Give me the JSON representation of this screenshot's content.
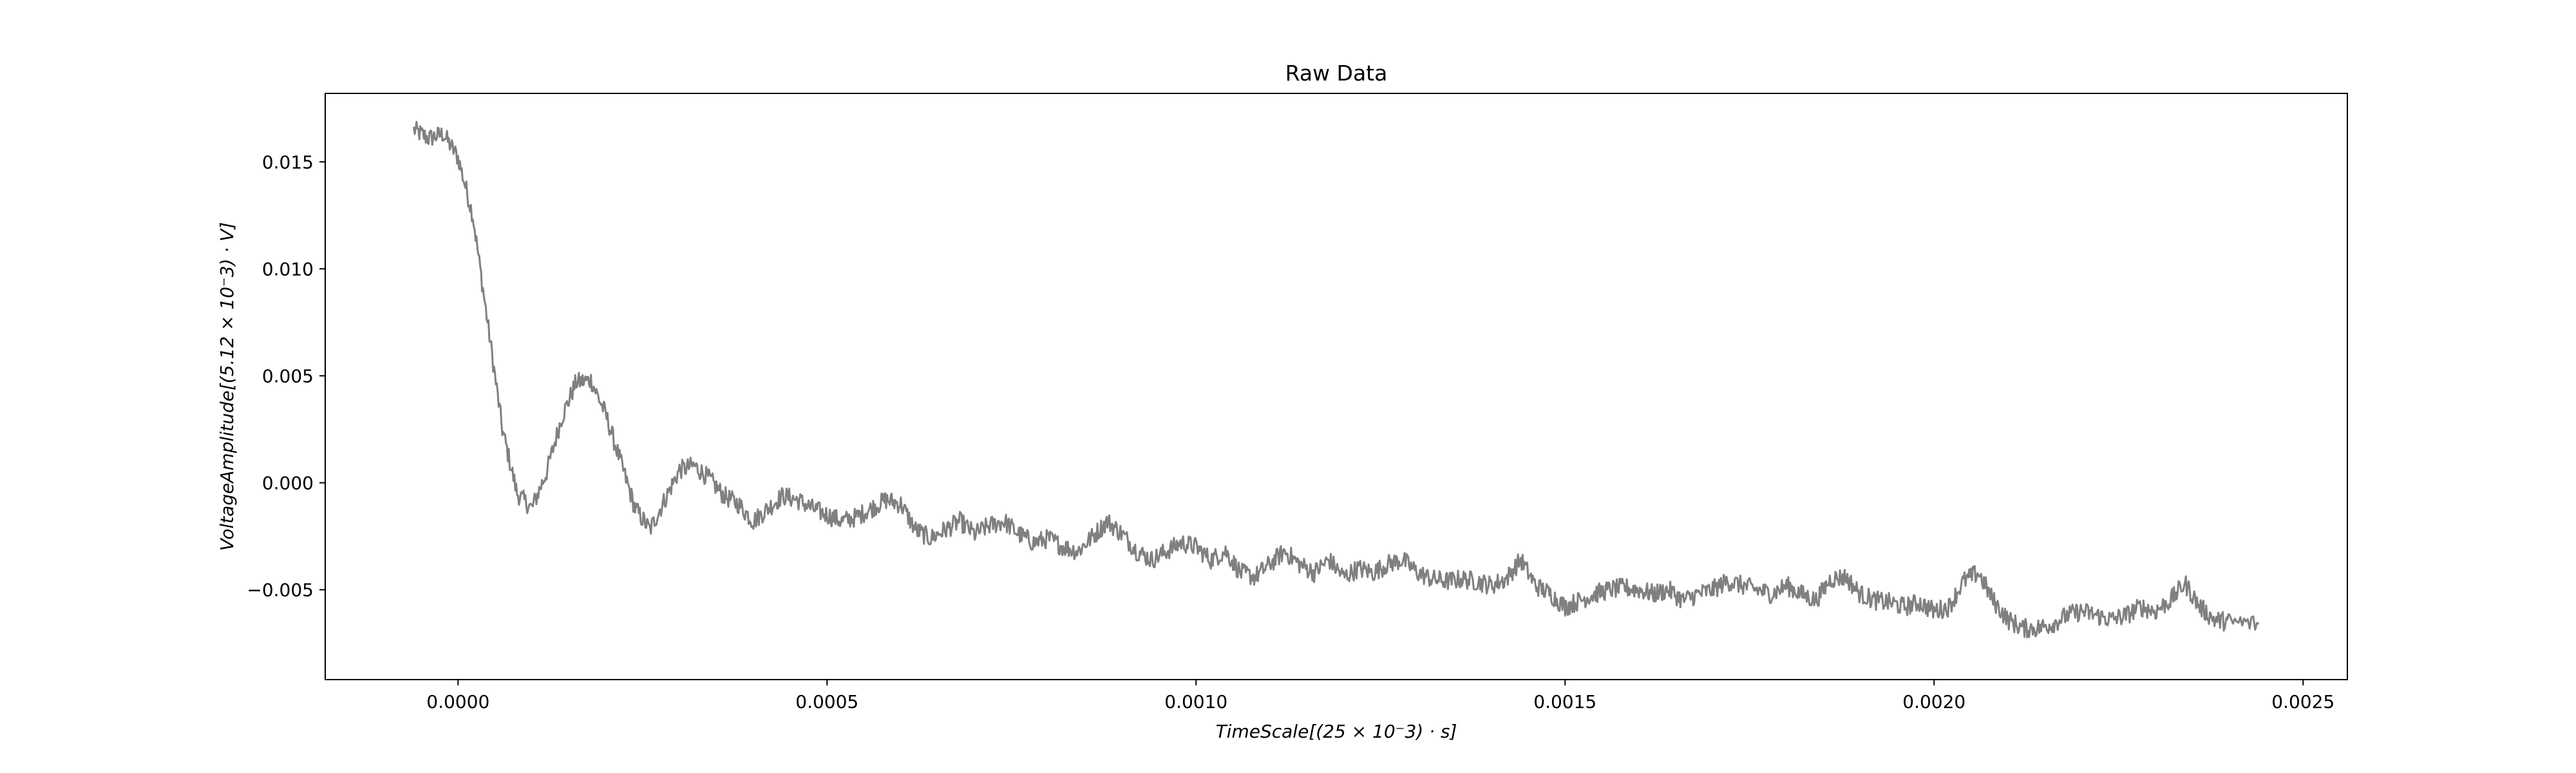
{
  "chart_data": {
    "type": "line",
    "title": "Raw Data",
    "xlabel": "TimeScale[(25 × 10⁻3) · s]",
    "ylabel": "VoltageAmplitude[(5.12 × 10⁻3) · V]",
    "xlim": [
      -0.00018,
      0.00256
    ],
    "ylim": [
      -0.0092,
      0.0182
    ],
    "x_ticks": [
      {
        "value": 0.0,
        "label": "0.0000"
      },
      {
        "value": 0.0005,
        "label": "0.0005"
      },
      {
        "value": 0.001,
        "label": "0.0010"
      },
      {
        "value": 0.0015,
        "label": "0.0015"
      },
      {
        "value": 0.002,
        "label": "0.0020"
      },
      {
        "value": 0.0025,
        "label": "0.0025"
      }
    ],
    "y_ticks": [
      {
        "value": -0.005,
        "label": "−0.005"
      },
      {
        "value": 0.0,
        "label": "0.000"
      },
      {
        "value": 0.005,
        "label": "0.005"
      },
      {
        "value": 0.01,
        "label": "0.010"
      },
      {
        "value": 0.015,
        "label": "0.015"
      }
    ],
    "grid": false,
    "series": [
      {
        "color": "#808080",
        "x": [
          -6e-05,
          -4e-05,
          -2e-05,
          0.0,
          2e-05,
          4e-05,
          6e-05,
          8e-05,
          0.0001,
          0.00012,
          0.00014,
          0.00016,
          0.00018,
          0.0002,
          0.00022,
          0.00024,
          0.00026,
          0.00028,
          0.0003,
          0.00032,
          0.00034,
          0.00036,
          0.00038,
          0.0004,
          0.00042,
          0.00044,
          0.00046,
          0.00048,
          0.0005,
          0.00052,
          0.00054,
          0.00056,
          0.00058,
          0.0006,
          0.00062,
          0.00064,
          0.00066,
          0.00068,
          0.0007,
          0.00072,
          0.00074,
          0.00076,
          0.00078,
          0.0008,
          0.00082,
          0.00084,
          0.00086,
          0.00088,
          0.0009,
          0.00092,
          0.00094,
          0.00096,
          0.00098,
          0.001,
          0.00102,
          0.00104,
          0.00106,
          0.00108,
          0.0011,
          0.00112,
          0.00114,
          0.00116,
          0.00118,
          0.0012,
          0.00122,
          0.00124,
          0.00126,
          0.00128,
          0.0013,
          0.00132,
          0.00134,
          0.00136,
          0.00138,
          0.0014,
          0.00142,
          0.00144,
          0.00146,
          0.00148,
          0.0015,
          0.00152,
          0.00154,
          0.00156,
          0.00158,
          0.0016,
          0.00162,
          0.00164,
          0.00166,
          0.00168,
          0.0017,
          0.00172,
          0.00174,
          0.00176,
          0.00178,
          0.0018,
          0.00182,
          0.00184,
          0.00186,
          0.00188,
          0.0019,
          0.00192,
          0.00194,
          0.00196,
          0.00198,
          0.002,
          0.00202,
          0.00204,
          0.00206,
          0.00208,
          0.0021,
          0.00212,
          0.00214,
          0.00216,
          0.00218,
          0.0022,
          0.00222,
          0.00224,
          0.00226,
          0.00228,
          0.0023,
          0.00232,
          0.00234,
          0.00236,
          0.00238,
          0.0024,
          0.00244
        ],
        "y": [
          0.0165,
          0.0161,
          0.0163,
          0.0152,
          0.0125,
          0.0075,
          0.0025,
          -0.0005,
          -0.0012,
          0.0005,
          0.003,
          0.0047,
          0.0048,
          0.0032,
          0.001,
          -0.0012,
          -0.0022,
          -0.0008,
          0.0006,
          0.0008,
          0.0002,
          -0.0006,
          -0.001,
          -0.0018,
          -0.0012,
          -0.0006,
          -0.0008,
          -0.0012,
          -0.0015,
          -0.0018,
          -0.0016,
          -0.0012,
          -0.0008,
          -0.001,
          -0.0022,
          -0.0026,
          -0.0022,
          -0.0018,
          -0.0024,
          -0.002,
          -0.0018,
          -0.0024,
          -0.0028,
          -0.0026,
          -0.003,
          -0.0032,
          -0.0025,
          -0.0018,
          -0.0024,
          -0.0032,
          -0.0036,
          -0.0032,
          -0.0028,
          -0.003,
          -0.0036,
          -0.0032,
          -0.0042,
          -0.0044,
          -0.0038,
          -0.0032,
          -0.0038,
          -0.0042,
          -0.0036,
          -0.0044,
          -0.004,
          -0.0042,
          -0.0038,
          -0.0036,
          -0.0042,
          -0.0045,
          -0.0046,
          -0.0045,
          -0.0046,
          -0.0048,
          -0.0045,
          -0.0036,
          -0.0048,
          -0.0052,
          -0.0058,
          -0.0055,
          -0.0052,
          -0.005,
          -0.0049,
          -0.005,
          -0.0052,
          -0.005,
          -0.0055,
          -0.0052,
          -0.005,
          -0.0046,
          -0.0048,
          -0.005,
          -0.0052,
          -0.0048,
          -0.0052,
          -0.0055,
          -0.0045,
          -0.0044,
          -0.0052,
          -0.0055,
          -0.0056,
          -0.0058,
          -0.0056,
          -0.006,
          -0.0058,
          -0.0046,
          -0.0042,
          -0.0055,
          -0.0064,
          -0.0068,
          -0.0068,
          -0.0066,
          -0.0062,
          -0.006,
          -0.0062,
          -0.0064,
          -0.0062,
          -0.0058,
          -0.006,
          -0.0055,
          -0.0047,
          -0.0058,
          -0.0064,
          -0.0065,
          -0.0066
        ]
      }
    ]
  }
}
